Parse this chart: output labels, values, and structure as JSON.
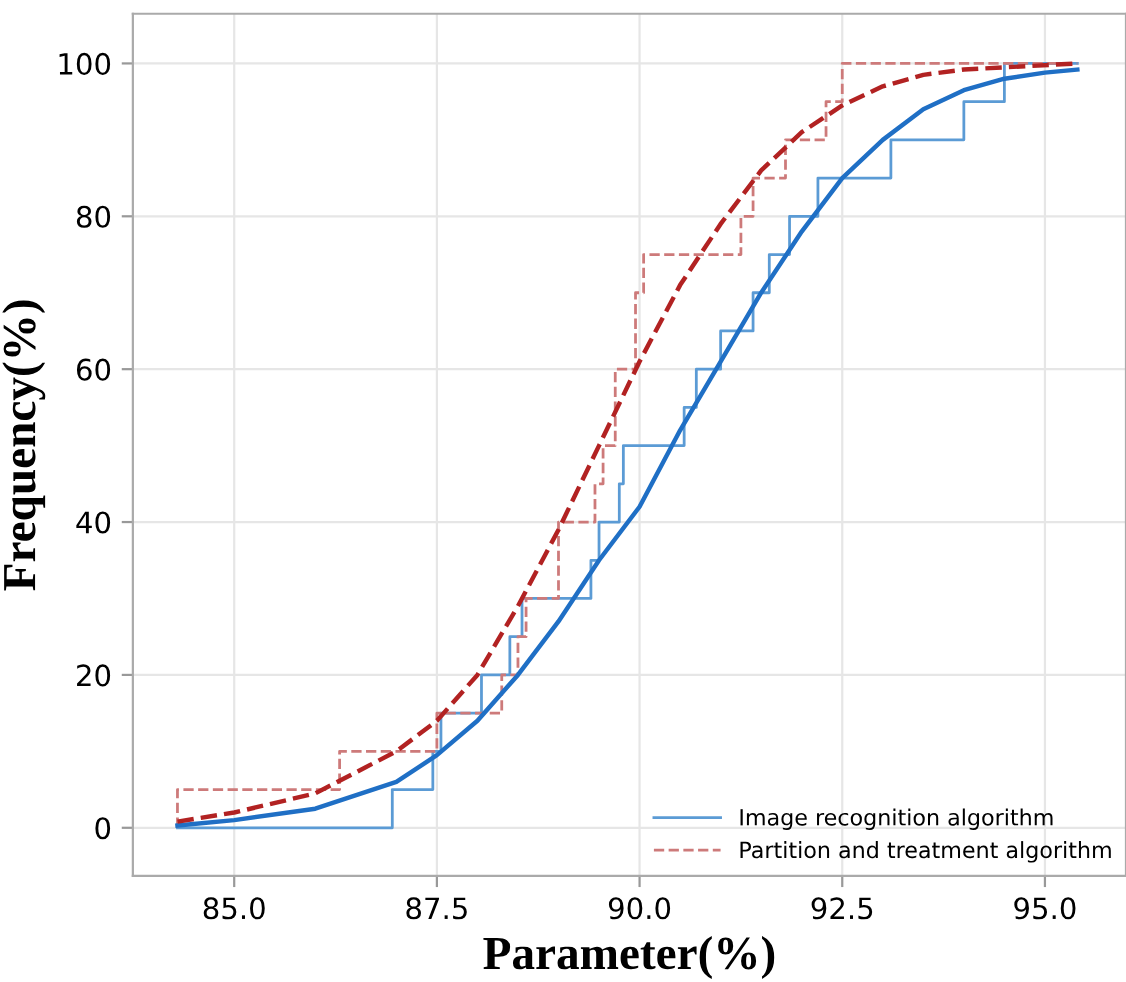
{
  "chart_data": {
    "type": "step",
    "xlabel": "Parameter(%)",
    "ylabel": "Frequency(%)",
    "xlim": [
      83.75,
      96.0
    ],
    "ylim": [
      -6.3,
      106.5
    ],
    "xticks": [
      {
        "value": 85.0,
        "label": "85.0"
      },
      {
        "value": 87.5,
        "label": "87.5"
      },
      {
        "value": 90.0,
        "label": "90.0"
      },
      {
        "value": 92.5,
        "label": "92.5"
      },
      {
        "value": 95.0,
        "label": "95.0"
      }
    ],
    "yticks": [
      0,
      20,
      40,
      60,
      80,
      100
    ],
    "grid": true,
    "legend": "bottom right",
    "series": [
      {
        "name": "Image recognition algorithm",
        "color": "#5b9bd5",
        "line_style": "solid",
        "x": [
          84.3,
          86.95,
          87.45,
          87.55,
          88.05,
          88.4,
          88.55,
          89.4,
          89.5,
          89.75,
          89.8,
          90.55,
          90.7,
          91.0,
          91.4,
          91.6,
          91.85,
          92.2,
          93.1,
          94.0,
          94.5,
          95.4
        ],
        "values": [
          0,
          5,
          10,
          15,
          20,
          25,
          30,
          35,
          40,
          45,
          50,
          55,
          60,
          65,
          70,
          75,
          80,
          85,
          90,
          95,
          100,
          100
        ]
      },
      {
        "name": "Partition and treatment algorithm",
        "color": "#cd7a7a",
        "line_style": "dashed",
        "x": [
          84.3,
          84.3,
          86.3,
          87.5,
          88.3,
          88.5,
          88.6,
          89.0,
          89.45,
          89.55,
          89.7,
          89.95,
          90.05,
          91.25,
          91.4,
          91.8,
          92.3,
          92.5,
          95.4
        ],
        "values": [
          0,
          5,
          10,
          15,
          20,
          25,
          30,
          40,
          45,
          50,
          60,
          70,
          75,
          80,
          85,
          90,
          95,
          100,
          100
        ]
      },
      {
        "type": "line",
        "color": "#1f6fc5",
        "line_style": "solid",
        "x": [
          84.3,
          85,
          86,
          87,
          87.5,
          88,
          88.5,
          89,
          89.5,
          90,
          90.5,
          91,
          91.5,
          92,
          92.5,
          93,
          93.5,
          94,
          94.5,
          95,
          95.4
        ],
        "values": [
          0.3,
          1,
          2.5,
          6,
          9.5,
          14,
          20,
          27,
          35,
          42,
          52,
          61,
          70,
          78,
          85,
          90,
          94,
          96.5,
          98,
          98.8,
          99.2
        ]
      },
      {
        "type": "line",
        "color": "#b22222",
        "line_style": "dashed",
        "x": [
          84.3,
          85,
          86,
          87,
          87.5,
          88,
          88.5,
          89,
          89.5,
          90,
          90.5,
          91,
          91.5,
          92,
          92.5,
          93,
          93.5,
          94,
          95.4
        ],
        "values": [
          0.8,
          2,
          4.5,
          10,
          14,
          20,
          29,
          39,
          50,
          61,
          71,
          79,
          86,
          91,
          94.5,
          97,
          98.5,
          99.2,
          100
        ]
      }
    ]
  }
}
